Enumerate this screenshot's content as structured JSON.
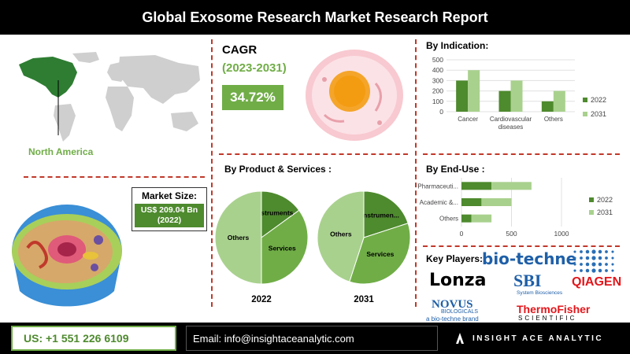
{
  "title": "Global Exosome Research Market Research Report",
  "region": {
    "label": "North America"
  },
  "cagr": {
    "label": "CAGR",
    "period": "(2023-2031)",
    "value": "34.72%"
  },
  "market_size": {
    "label": "Market Size:",
    "value": "US$ 209.04 Bn (2022)"
  },
  "product_title": "By Product & Services :",
  "indication_title": "By Indication:",
  "enduse_title": "By End-Use :",
  "key_players": {
    "label": "Key Players:",
    "logos": [
      "bio-techne",
      "Lonza",
      "SBI",
      "System Biosciences",
      "QIAGEN",
      "NOVUS",
      "BIOLOGICALS",
      "a bio-techne brand",
      "ThermoFisher",
      "SCIENTIFIC"
    ]
  },
  "footer": {
    "phone": "US: +1 551 226 6109",
    "email": "Email: info@insightaceanalytic.com",
    "brand": "INSIGHT ACE ANALYTIC"
  },
  "colors": {
    "dark_green": "#4e8a2e",
    "mid_green": "#70ad47",
    "light_green": "#a9d18e"
  },
  "chart_data": [
    {
      "type": "bar",
      "title": "By Indication:",
      "categories": [
        "Cancer",
        "Cardiovascular diseases",
        "Others"
      ],
      "series": [
        {
          "name": "2022",
          "values": [
            300,
            200,
            100
          ]
        },
        {
          "name": "2031",
          "values": [
            400,
            300,
            200
          ]
        }
      ],
      "ylim": [
        0,
        500
      ],
      "yticks": [
        0,
        100,
        200,
        300,
        400,
        500
      ],
      "legend": "right"
    },
    {
      "type": "bar",
      "orientation": "horizontal",
      "title": "By End-Use :",
      "categories": [
        "Pharmaceuti...",
        "Academic &...",
        "Others"
      ],
      "series": [
        {
          "name": "2022",
          "values": [
            300,
            200,
            100
          ]
        },
        {
          "name": "2031",
          "values": [
            400,
            300,
            200
          ]
        }
      ],
      "xlim": [
        0,
        1000
      ],
      "xticks": [
        0,
        500,
        1000
      ],
      "legend": "right"
    },
    {
      "type": "pie",
      "title": "2022",
      "slices": [
        {
          "label": "Instruments",
          "value": 15
        },
        {
          "label": "Services",
          "value": 35
        },
        {
          "label": "Others",
          "value": 50
        }
      ]
    },
    {
      "type": "pie",
      "title": "2031",
      "slices": [
        {
          "label": "Instrumen...",
          "value": 20
        },
        {
          "label": "Services",
          "value": 35
        },
        {
          "label": "Others",
          "value": 45
        }
      ]
    }
  ]
}
